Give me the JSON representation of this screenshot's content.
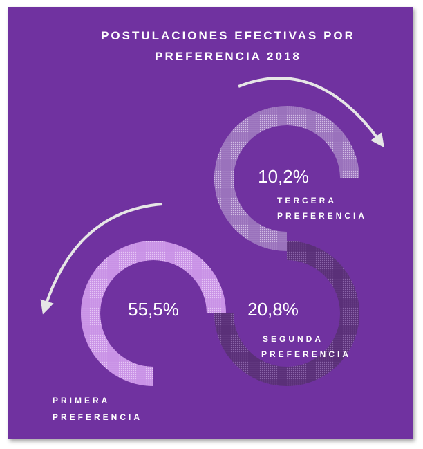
{
  "title": [
    "POSTULACIONES EFECTIVAS POR",
    "PREFERENCIA 2018"
  ],
  "items": [
    {
      "value": "55,5%",
      "label": [
        "PRIMERA",
        "PREFERENCIA"
      ]
    },
    {
      "value": "20,8%",
      "label": [
        "SEGUNDA",
        "PREFERENCIA"
      ]
    },
    {
      "value": "10,2%",
      "label": [
        "TERCERA",
        "PREFERENCIA"
      ]
    }
  ]
}
